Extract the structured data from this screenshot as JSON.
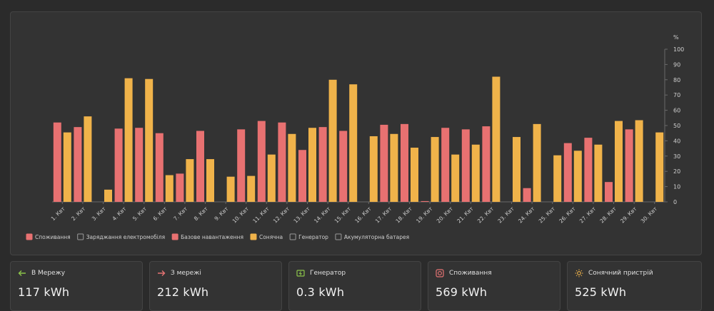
{
  "chart_data": {
    "type": "bar",
    "unit_label": "%",
    "ylim": [
      0,
      100
    ],
    "yticks": [
      0,
      10,
      20,
      30,
      40,
      50,
      60,
      70,
      80,
      90,
      100
    ],
    "categories": [
      "1. Квт",
      "2. Квт",
      "3. Квт",
      "4. Квт",
      "5. Квт",
      "6. Квт",
      "7. Квт",
      "8. Квт",
      "9. Квт",
      "10. Квт",
      "11. Квт",
      "12. Квт",
      "13. Квт",
      "14. Квт",
      "15. Квт",
      "16. Квт",
      "17. Квт",
      "18. Квт",
      "19. Квт",
      "20. Квт",
      "21. Квт",
      "22. Квт",
      "23. Квт",
      "24. Квт",
      "25. Квт",
      "26. Квт",
      "27. Квт",
      "28. Квт",
      "29. Квт",
      "30. Квт"
    ],
    "series": [
      {
        "name": "Базове навантаження",
        "color": "#e87171",
        "values": [
          52,
          49,
          0,
          48,
          48.5,
          45,
          18.5,
          46.5,
          0,
          47.5,
          53,
          52,
          34,
          49,
          46.5,
          0,
          50.5,
          51,
          0.5,
          48.5,
          47.5,
          49.5,
          0,
          9,
          0,
          38.5,
          42,
          13,
          47.5,
          0
        ]
      },
      {
        "name": "Сонячна",
        "color": "#f0b34a",
        "values": [
          45.5,
          56,
          8,
          81,
          80.5,
          17.5,
          28,
          28,
          16.5,
          17,
          31,
          44.5,
          48.5,
          80,
          77,
          43,
          44.5,
          35.5,
          42.5,
          31,
          37.5,
          82,
          42.5,
          51,
          30.5,
          33.5,
          37.5,
          53,
          53.5,
          45.5
        ]
      }
    ],
    "legend": [
      {
        "label": "Споживання",
        "color": "#e87171",
        "filled": true
      },
      {
        "label": "Заряджання електромобіля",
        "color": "#9a9a9a",
        "filled": false
      },
      {
        "label": "Базове навантаження",
        "color": "#e87171",
        "filled": true
      },
      {
        "label": "Сонячна",
        "color": "#f0b34a",
        "filled": true
      },
      {
        "label": "Генератор",
        "color": "#9a9a9a",
        "filled": false
      },
      {
        "label": "Акумуляторна батарея",
        "color": "#9a9a9a",
        "filled": false
      }
    ],
    "legend_position": "bottom-left",
    "grid": false
  },
  "cards": [
    {
      "title": "В Мережу",
      "value": "117 kWh",
      "icon": "arrow-left-icon",
      "color": "#8bc34a"
    },
    {
      "title": "З мережі",
      "value": "212 kWh",
      "icon": "arrow-right-icon",
      "color": "#e57373"
    },
    {
      "title": "Генератор",
      "value": "0.3 kWh",
      "icon": "generator-icon",
      "color": "#8bc34a"
    },
    {
      "title": "Споживання",
      "value": "569 kWh",
      "icon": "consumption-icon",
      "color": "#e57373"
    },
    {
      "title": "Сонячний пристрій",
      "value": "525 kWh",
      "icon": "sun-icon",
      "color": "#f0b34a"
    }
  ]
}
